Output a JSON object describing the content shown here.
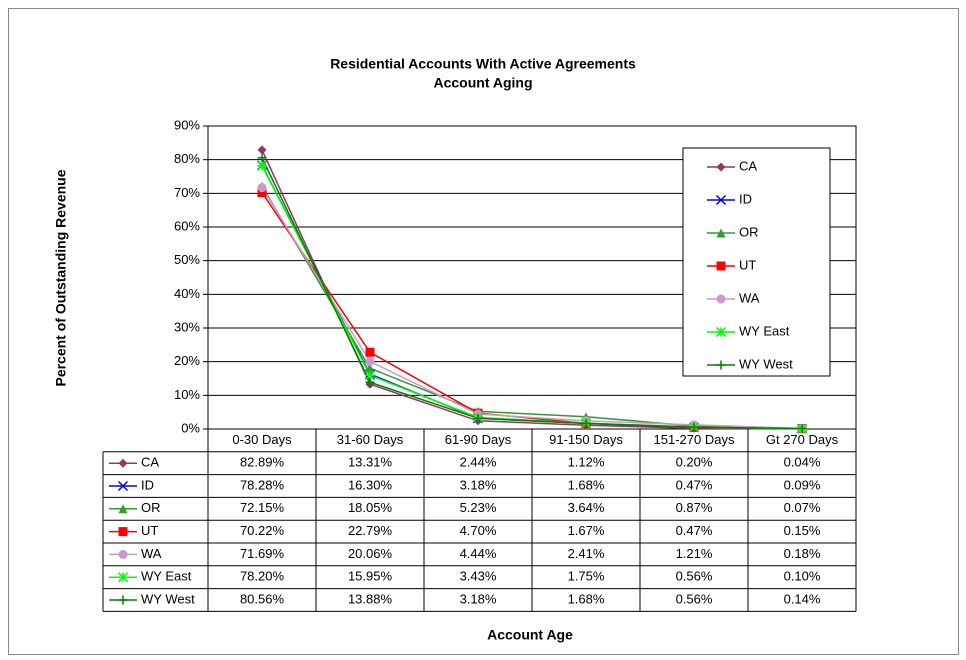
{
  "chart_data": {
    "type": "line",
    "title": "Residential Accounts With Active Agreements",
    "subtitle": "Account Aging",
    "y_label": "Percent of Outstanding Revenue",
    "x_label": "Account Age",
    "categories": [
      "0-30 Days",
      "31-60 Days",
      "61-90 Days",
      "91-150 Days",
      "151-270 Days",
      "Gt 270 Days"
    ],
    "ylim": [
      0,
      90
    ],
    "yticks": [
      {
        "value": 0,
        "label": "0%"
      },
      {
        "value": 10,
        "label": "10%"
      },
      {
        "value": 20,
        "label": "20%"
      },
      {
        "value": 30,
        "label": "30%"
      },
      {
        "value": 40,
        "label": "40%"
      },
      {
        "value": 50,
        "label": "50%"
      },
      {
        "value": 60,
        "label": "60%"
      },
      {
        "value": 70,
        "label": "70%"
      },
      {
        "value": 80,
        "label": "80%"
      },
      {
        "value": 90,
        "label": "90%"
      }
    ],
    "grid": true,
    "legend": "right",
    "data_table": true,
    "series": [
      {
        "name": "CA",
        "color": "#993366",
        "marker": "diamond",
        "values": [
          82.89,
          13.31,
          2.44,
          1.12,
          0.2,
          0.04
        ],
        "value_labels": [
          "82.89%",
          "13.31%",
          "2.44%",
          "1.12%",
          "0.20%",
          "0.04%"
        ]
      },
      {
        "name": "ID",
        "color": "#0000ff",
        "marker": "x",
        "values": [
          78.28,
          16.3,
          3.18,
          1.68,
          0.47,
          0.09
        ],
        "value_labels": [
          "78.28%",
          "16.30%",
          "3.18%",
          "1.68%",
          "0.47%",
          "0.09%"
        ]
      },
      {
        "name": "OR",
        "color": "#339933",
        "marker": "triangle",
        "values": [
          72.15,
          18.05,
          5.23,
          3.64,
          0.87,
          0.07
        ],
        "value_labels": [
          "72.15%",
          "18.05%",
          "5.23%",
          "3.64%",
          "0.87%",
          "0.07%"
        ]
      },
      {
        "name": "UT",
        "color": "#ff0000",
        "marker": "square",
        "values": [
          70.22,
          22.79,
          4.7,
          1.67,
          0.47,
          0.15
        ],
        "value_labels": [
          "70.22%",
          "22.79%",
          "4.70%",
          "1.67%",
          "0.47%",
          "0.15%"
        ]
      },
      {
        "name": "WA",
        "color": "#cc99cc",
        "marker": "circle",
        "values": [
          71.69,
          20.06,
          4.44,
          2.41,
          1.21,
          0.18
        ],
        "value_labels": [
          "71.69%",
          "20.06%",
          "4.44%",
          "2.41%",
          "1.21%",
          "0.18%"
        ]
      },
      {
        "name": "WY East",
        "color": "#00ff00",
        "marker": "star",
        "values": [
          78.2,
          15.95,
          3.43,
          1.75,
          0.56,
          0.1
        ],
        "value_labels": [
          "78.20%",
          "15.95%",
          "3.43%",
          "1.75%",
          "0.56%",
          "0.10%"
        ]
      },
      {
        "name": "WY West",
        "color": "#008000",
        "marker": "plus",
        "values": [
          80.56,
          13.88,
          3.18,
          1.68,
          0.56,
          0.14
        ],
        "value_labels": [
          "80.56%",
          "13.88%",
          "3.18%",
          "1.68%",
          "0.56%",
          "0.14%"
        ]
      }
    ]
  }
}
